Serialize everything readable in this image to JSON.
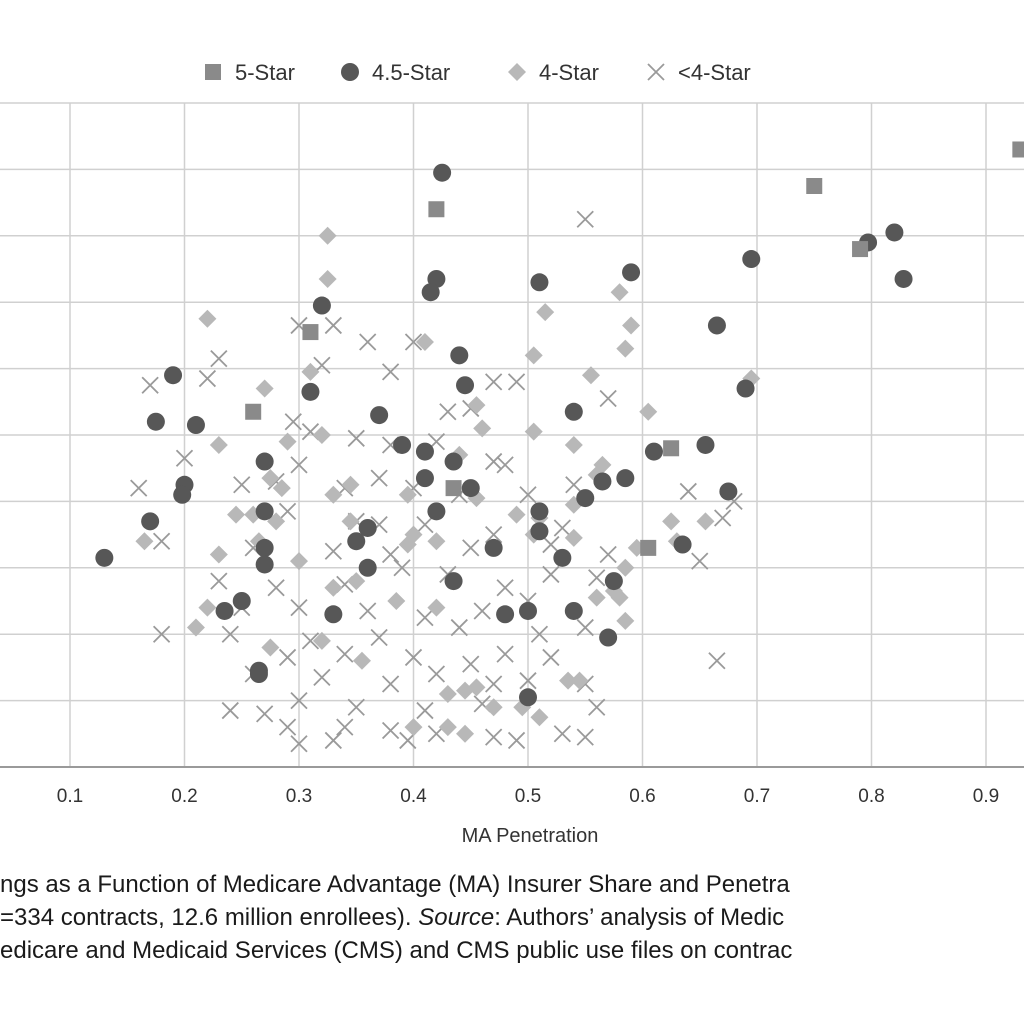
{
  "chart_data": {
    "type": "scatter",
    "xlabel": "MA Penetration",
    "ylabel": "",
    "xlim": [
      0.05,
      0.95
    ],
    "ylim": [
      0,
      1
    ],
    "x_ticks": [
      "0.1",
      "0.2",
      "0.3",
      "0.4",
      "0.5",
      "0.6",
      "0.7",
      "0.8",
      "0.9"
    ],
    "y_gridlines": 10,
    "grid": true,
    "legend_position": "top",
    "series": [
      {
        "name": "5-Star",
        "marker": "square",
        "color": "#8a8a8a",
        "points": [
          [
            0.93,
            0.93
          ],
          [
            0.75,
            0.875
          ],
          [
            0.79,
            0.78
          ],
          [
            0.42,
            0.84
          ],
          [
            0.31,
            0.655
          ],
          [
            0.26,
            0.535
          ],
          [
            0.625,
            0.48
          ],
          [
            0.435,
            0.42
          ],
          [
            0.605,
            0.33
          ]
        ]
      },
      {
        "name": "4.5-Star",
        "marker": "circle",
        "color": "#575757",
        "points": [
          [
            0.425,
            0.895
          ],
          [
            0.82,
            0.805
          ],
          [
            0.797,
            0.79
          ],
          [
            0.828,
            0.735
          ],
          [
            0.695,
            0.765
          ],
          [
            0.59,
            0.745
          ],
          [
            0.51,
            0.73
          ],
          [
            0.42,
            0.735
          ],
          [
            0.415,
            0.715
          ],
          [
            0.32,
            0.695
          ],
          [
            0.665,
            0.665
          ],
          [
            0.44,
            0.62
          ],
          [
            0.19,
            0.59
          ],
          [
            0.445,
            0.575
          ],
          [
            0.31,
            0.565
          ],
          [
            0.69,
            0.57
          ],
          [
            0.175,
            0.52
          ],
          [
            0.21,
            0.515
          ],
          [
            0.37,
            0.53
          ],
          [
            0.54,
            0.535
          ],
          [
            0.39,
            0.485
          ],
          [
            0.41,
            0.475
          ],
          [
            0.61,
            0.475
          ],
          [
            0.655,
            0.485
          ],
          [
            0.435,
            0.46
          ],
          [
            0.27,
            0.46
          ],
          [
            0.41,
            0.435
          ],
          [
            0.585,
            0.435
          ],
          [
            0.565,
            0.43
          ],
          [
            0.2,
            0.425
          ],
          [
            0.198,
            0.41
          ],
          [
            0.45,
            0.42
          ],
          [
            0.675,
            0.415
          ],
          [
            0.55,
            0.405
          ],
          [
            0.27,
            0.385
          ],
          [
            0.42,
            0.385
          ],
          [
            0.51,
            0.385
          ],
          [
            0.17,
            0.37
          ],
          [
            0.36,
            0.36
          ],
          [
            0.51,
            0.355
          ],
          [
            0.35,
            0.34
          ],
          [
            0.27,
            0.33
          ],
          [
            0.47,
            0.33
          ],
          [
            0.635,
            0.335
          ],
          [
            0.13,
            0.315
          ],
          [
            0.36,
            0.3
          ],
          [
            0.27,
            0.305
          ],
          [
            0.53,
            0.315
          ],
          [
            0.575,
            0.28
          ],
          [
            0.435,
            0.28
          ],
          [
            0.25,
            0.25
          ],
          [
            0.235,
            0.235
          ],
          [
            0.33,
            0.23
          ],
          [
            0.48,
            0.23
          ],
          [
            0.5,
            0.235
          ],
          [
            0.54,
            0.235
          ],
          [
            0.57,
            0.195
          ],
          [
            0.265,
            0.145
          ],
          [
            0.265,
            0.14
          ],
          [
            0.5,
            0.105
          ]
        ]
      },
      {
        "name": "4-Star",
        "marker": "diamond",
        "color": "#b8b8b8",
        "points": [
          [
            0.325,
            0.8
          ],
          [
            0.325,
            0.735
          ],
          [
            0.58,
            0.715
          ],
          [
            0.59,
            0.665
          ],
          [
            0.515,
            0.685
          ],
          [
            0.22,
            0.675
          ],
          [
            0.41,
            0.64
          ],
          [
            0.505,
            0.62
          ],
          [
            0.585,
            0.63
          ],
          [
            0.31,
            0.595
          ],
          [
            0.27,
            0.57
          ],
          [
            0.455,
            0.545
          ],
          [
            0.555,
            0.59
          ],
          [
            0.695,
            0.585
          ],
          [
            0.605,
            0.535
          ],
          [
            0.46,
            0.51
          ],
          [
            0.32,
            0.5
          ],
          [
            0.29,
            0.49
          ],
          [
            0.505,
            0.505
          ],
          [
            0.54,
            0.485
          ],
          [
            0.23,
            0.485
          ],
          [
            0.44,
            0.47
          ],
          [
            0.565,
            0.455
          ],
          [
            0.56,
            0.44
          ],
          [
            0.275,
            0.435
          ],
          [
            0.285,
            0.42
          ],
          [
            0.345,
            0.425
          ],
          [
            0.33,
            0.41
          ],
          [
            0.395,
            0.41
          ],
          [
            0.455,
            0.405
          ],
          [
            0.245,
            0.38
          ],
          [
            0.26,
            0.38
          ],
          [
            0.28,
            0.37
          ],
          [
            0.345,
            0.37
          ],
          [
            0.49,
            0.38
          ],
          [
            0.51,
            0.375
          ],
          [
            0.54,
            0.395
          ],
          [
            0.165,
            0.34
          ],
          [
            0.23,
            0.32
          ],
          [
            0.265,
            0.34
          ],
          [
            0.3,
            0.31
          ],
          [
            0.4,
            0.35
          ],
          [
            0.395,
            0.335
          ],
          [
            0.42,
            0.34
          ],
          [
            0.505,
            0.35
          ],
          [
            0.54,
            0.345
          ],
          [
            0.595,
            0.33
          ],
          [
            0.625,
            0.37
          ],
          [
            0.63,
            0.34
          ],
          [
            0.655,
            0.37
          ],
          [
            0.585,
            0.3
          ],
          [
            0.58,
            0.255
          ],
          [
            0.575,
            0.265
          ],
          [
            0.56,
            0.255
          ],
          [
            0.585,
            0.22
          ],
          [
            0.33,
            0.27
          ],
          [
            0.35,
            0.28
          ],
          [
            0.385,
            0.25
          ],
          [
            0.42,
            0.24
          ],
          [
            0.22,
            0.24
          ],
          [
            0.21,
            0.21
          ],
          [
            0.275,
            0.18
          ],
          [
            0.32,
            0.19
          ],
          [
            0.355,
            0.16
          ],
          [
            0.43,
            0.11
          ],
          [
            0.445,
            0.115
          ],
          [
            0.455,
            0.12
          ],
          [
            0.47,
            0.09
          ],
          [
            0.43,
            0.06
          ],
          [
            0.445,
            0.05
          ],
          [
            0.51,
            0.075
          ],
          [
            0.535,
            0.13
          ],
          [
            0.545,
            0.13
          ],
          [
            0.495,
            0.09
          ],
          [
            0.4,
            0.06
          ]
        ]
      },
      {
        "name": "<4-Star",
        "marker": "x",
        "color": "#9a9a9a",
        "points": [
          [
            0.55,
            0.825
          ],
          [
            0.3,
            0.665
          ],
          [
            0.33,
            0.665
          ],
          [
            0.4,
            0.64
          ],
          [
            0.36,
            0.64
          ],
          [
            0.23,
            0.615
          ],
          [
            0.22,
            0.585
          ],
          [
            0.17,
            0.575
          ],
          [
            0.32,
            0.605
          ],
          [
            0.38,
            0.595
          ],
          [
            0.47,
            0.58
          ],
          [
            0.49,
            0.58
          ],
          [
            0.57,
            0.555
          ],
          [
            0.43,
            0.535
          ],
          [
            0.45,
            0.54
          ],
          [
            0.295,
            0.52
          ],
          [
            0.31,
            0.505
          ],
          [
            0.35,
            0.495
          ],
          [
            0.38,
            0.485
          ],
          [
            0.42,
            0.49
          ],
          [
            0.2,
            0.465
          ],
          [
            0.3,
            0.455
          ],
          [
            0.37,
            0.435
          ],
          [
            0.47,
            0.46
          ],
          [
            0.48,
            0.455
          ],
          [
            0.16,
            0.42
          ],
          [
            0.25,
            0.425
          ],
          [
            0.28,
            0.43
          ],
          [
            0.34,
            0.42
          ],
          [
            0.4,
            0.42
          ],
          [
            0.44,
            0.41
          ],
          [
            0.5,
            0.41
          ],
          [
            0.54,
            0.425
          ],
          [
            0.64,
            0.415
          ],
          [
            0.68,
            0.4
          ],
          [
            0.29,
            0.385
          ],
          [
            0.35,
            0.37
          ],
          [
            0.37,
            0.365
          ],
          [
            0.41,
            0.365
          ],
          [
            0.47,
            0.35
          ],
          [
            0.53,
            0.36
          ],
          [
            0.67,
            0.375
          ],
          [
            0.18,
            0.34
          ],
          [
            0.26,
            0.33
          ],
          [
            0.33,
            0.325
          ],
          [
            0.38,
            0.32
          ],
          [
            0.45,
            0.33
          ],
          [
            0.52,
            0.335
          ],
          [
            0.57,
            0.32
          ],
          [
            0.65,
            0.31
          ],
          [
            0.23,
            0.28
          ],
          [
            0.28,
            0.27
          ],
          [
            0.34,
            0.275
          ],
          [
            0.39,
            0.3
          ],
          [
            0.43,
            0.29
          ],
          [
            0.48,
            0.27
          ],
          [
            0.52,
            0.29
          ],
          [
            0.56,
            0.285
          ],
          [
            0.25,
            0.24
          ],
          [
            0.3,
            0.24
          ],
          [
            0.36,
            0.235
          ],
          [
            0.41,
            0.225
          ],
          [
            0.46,
            0.235
          ],
          [
            0.5,
            0.25
          ],
          [
            0.55,
            0.21
          ],
          [
            0.18,
            0.2
          ],
          [
            0.24,
            0.2
          ],
          [
            0.31,
            0.19
          ],
          [
            0.37,
            0.195
          ],
          [
            0.44,
            0.21
          ],
          [
            0.51,
            0.2
          ],
          [
            0.29,
            0.165
          ],
          [
            0.34,
            0.17
          ],
          [
            0.4,
            0.165
          ],
          [
            0.45,
            0.155
          ],
          [
            0.48,
            0.17
          ],
          [
            0.52,
            0.165
          ],
          [
            0.26,
            0.14
          ],
          [
            0.32,
            0.135
          ],
          [
            0.38,
            0.125
          ],
          [
            0.42,
            0.14
          ],
          [
            0.47,
            0.125
          ],
          [
            0.5,
            0.13
          ],
          [
            0.55,
            0.125
          ],
          [
            0.665,
            0.16
          ],
          [
            0.3,
            0.1
          ],
          [
            0.35,
            0.09
          ],
          [
            0.41,
            0.085
          ],
          [
            0.46,
            0.095
          ],
          [
            0.56,
            0.09
          ],
          [
            0.24,
            0.085
          ],
          [
            0.27,
            0.08
          ],
          [
            0.29,
            0.06
          ],
          [
            0.34,
            0.06
          ],
          [
            0.38,
            0.055
          ],
          [
            0.42,
            0.05
          ],
          [
            0.47,
            0.045
          ],
          [
            0.49,
            0.04
          ],
          [
            0.53,
            0.05
          ],
          [
            0.395,
            0.04
          ],
          [
            0.3,
            0.035
          ],
          [
            0.55,
            0.045
          ],
          [
            0.33,
            0.04
          ]
        ]
      }
    ]
  },
  "caption": {
    "line1": "ngs as a Function of Medicare Advantage (MA) Insurer Share and Penetra",
    "line2_a": "=334 contracts, 12.6 million enrollees). ",
    "line2_source": "Source",
    "line2_b": ": Authors’ analysis of Medic",
    "line3": "edicare and Medicaid Services (CMS) and CMS public use files on contrac"
  }
}
